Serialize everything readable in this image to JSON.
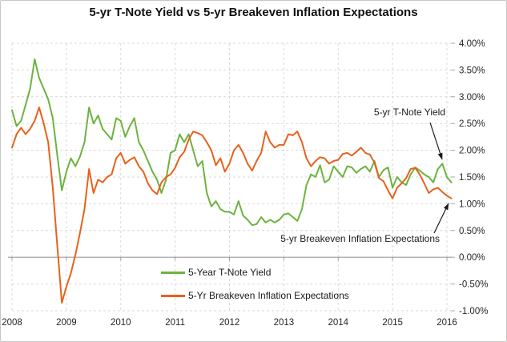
{
  "title": "5-yr T-Note Yield vs 5-yr Breakeven Inflation Expectations",
  "annotations": {
    "tnote": "5-yr T-Note Yield",
    "breakeven": "5-yr Breakeven Inflation Expectations"
  },
  "legend": {
    "items": [
      {
        "label": "5-Year T-Note Yield",
        "color": "#6cb33f"
      },
      {
        "label": "5-Yr Breakeven Inflation Expectations",
        "color": "#e8611c"
      }
    ]
  },
  "colors": {
    "green_series": "#6cb33f",
    "orange_series": "#e8611c",
    "gridline": "#d9d9d9",
    "zero_axis": "#9c9c9c",
    "tick": "#a6a6a6",
    "text": "#262626"
  },
  "chart_data": {
    "type": "line",
    "title": "5-yr T-Note Yield vs 5-yr Breakeven Inflation Expectations",
    "xlabel": "",
    "ylabel": "",
    "x_tick_labels": [
      "2008",
      "2009",
      "2010",
      "2011",
      "2012",
      "2013",
      "2014",
      "2015",
      "2016"
    ],
    "y_tick_labels": [
      "4.00%",
      "3.50%",
      "3.00%",
      "2.50%",
      "2.00%",
      "1.50%",
      "1.00%",
      "0.50%",
      "0.00%",
      "-0.50%",
      "-1.00%"
    ],
    "xlim": [
      2008.0,
      2016.17
    ],
    "ylim": [
      -1.0,
      4.0
    ],
    "y_tick_step": 0.5,
    "grid": "dashed",
    "axis_crosses_at_y": 0.0,
    "legend_position": "inside-bottom-center",
    "x_start": 2008.0,
    "x_interval_years": 0.08333,
    "series": [
      {
        "name": "5-Year T-Note Yield",
        "color": "#6cb33f",
        "values": [
          2.75,
          2.45,
          2.55,
          2.85,
          3.15,
          3.7,
          3.35,
          3.15,
          2.95,
          2.6,
          1.9,
          1.25,
          1.6,
          1.85,
          1.7,
          1.88,
          2.15,
          2.8,
          2.5,
          2.65,
          2.4,
          2.3,
          2.2,
          2.6,
          2.55,
          2.25,
          2.45,
          2.6,
          2.15,
          2.0,
          1.8,
          1.6,
          1.45,
          1.2,
          1.45,
          1.95,
          2.0,
          2.3,
          2.15,
          2.3,
          2.0,
          1.7,
          1.8,
          1.2,
          0.95,
          1.05,
          0.9,
          0.85,
          0.85,
          0.8,
          1.05,
          0.78,
          0.7,
          0.6,
          0.62,
          0.75,
          0.65,
          0.7,
          0.65,
          0.7,
          0.8,
          0.82,
          0.75,
          0.68,
          0.9,
          1.35,
          1.55,
          1.5,
          1.72,
          1.4,
          1.45,
          1.7,
          1.6,
          1.5,
          1.7,
          1.68,
          1.58,
          1.65,
          1.7,
          1.6,
          1.8,
          1.5,
          1.63,
          1.68,
          1.3,
          1.5,
          1.4,
          1.35,
          1.55,
          1.68,
          1.62,
          1.55,
          1.5,
          1.4,
          1.65,
          1.75,
          1.5,
          1.4
        ]
      },
      {
        "name": "5-Yr Breakeven Inflation Expectations",
        "color": "#e8611c",
        "values": [
          2.05,
          2.3,
          2.42,
          2.3,
          2.4,
          2.55,
          2.8,
          2.5,
          2.15,
          1.3,
          0.2,
          -0.85,
          -0.55,
          -0.3,
          0.05,
          0.45,
          0.9,
          1.65,
          1.2,
          1.45,
          1.4,
          1.5,
          1.55,
          1.85,
          1.95,
          1.75,
          1.82,
          1.87,
          1.7,
          1.6,
          1.38,
          1.25,
          1.18,
          1.4,
          1.5,
          1.55,
          1.67,
          1.87,
          1.97,
          2.2,
          2.35,
          2.32,
          2.28,
          2.15,
          2.0,
          1.72,
          1.85,
          1.6,
          1.75,
          2.0,
          2.1,
          1.95,
          1.75,
          1.62,
          1.8,
          1.95,
          2.35,
          2.15,
          2.05,
          2.1,
          2.1,
          2.3,
          2.28,
          2.35,
          2.15,
          1.85,
          1.7,
          1.8,
          1.87,
          1.85,
          1.75,
          1.8,
          1.82,
          1.93,
          1.95,
          1.9,
          1.97,
          2.05,
          1.95,
          1.92,
          1.77,
          1.48,
          1.42,
          1.25,
          1.1,
          1.3,
          1.38,
          1.48,
          1.65,
          1.67,
          1.55,
          1.38,
          1.2,
          1.27,
          1.3,
          1.22,
          1.15,
          1.1
        ]
      }
    ]
  }
}
